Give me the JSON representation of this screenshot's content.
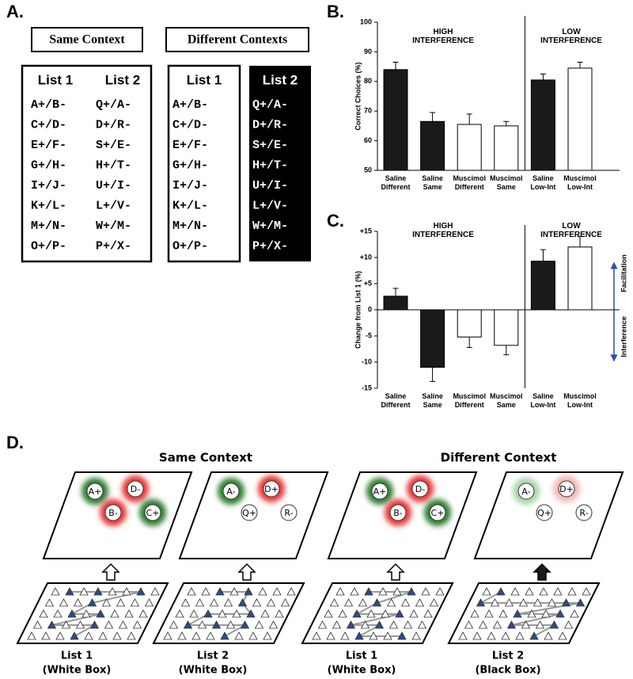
{
  "panel_a": {
    "label": "A.",
    "headers": [
      "Same Context",
      "Different Contexts"
    ],
    "lists": [
      {
        "title": "List 1",
        "items": [
          "A+/B-",
          "C+/D-",
          "E+/F-",
          "G+/H-",
          "I+/J-",
          "K+/L-",
          "M+/N-",
          "O+/P-"
        ]
      },
      {
        "title": "List 2",
        "items": [
          "Q+/A-",
          "D+/R-",
          "S+/E-",
          "H+/T-",
          "U+/I-",
          "L+/V-",
          "W+/M-",
          "P+/X-"
        ]
      },
      {
        "title": "List 1",
        "items": [
          "A+/B-",
          "C+/D-",
          "E+/F-",
          "G+/H-",
          "I+/J-",
          "K+/L-",
          "M+/N-",
          "O+/P-"
        ]
      },
      {
        "title": "List 2",
        "items": [
          "Q+/A-",
          "D+/R-",
          "S+/E-",
          "H+/T-",
          "U+/I-",
          "L+/V-",
          "W+/M-",
          "P+/X-"
        ]
      }
    ]
  },
  "chart_data": [
    {
      "type": "bar",
      "panel_label": "B.",
      "y_label": "Correct Choices (%)",
      "annotations": [
        "HIGH INTERFERENCE",
        "LOW INTERFERENCE"
      ],
      "categories": [
        "Saline Different",
        "Saline Same",
        "Muscimol Different",
        "Muscimol Same",
        "Saline Low-Int",
        "Muscimol Low-Int"
      ],
      "values": [
        84,
        66.5,
        65.5,
        65,
        80.5,
        84.5
      ],
      "errors": [
        2.5,
        3,
        3.5,
        1.5,
        2,
        2
      ],
      "colors": [
        "#1a1a1a",
        "#1a1a1a",
        "#ffffff",
        "#ffffff",
        "#1a1a1a",
        "#ffffff"
      ],
      "ylim": [
        50,
        100
      ],
      "yticks": [
        50,
        60,
        70,
        80,
        90,
        100
      ]
    },
    {
      "type": "bar",
      "panel_label": "C.",
      "y_label": "Change from List 1 (%)",
      "annotations": [
        "HIGH INTERFERENCE",
        "LOW INTERFERENCE"
      ],
      "side_labels": [
        "Facilitation",
        "Interference"
      ],
      "categories": [
        "Saline Different",
        "Saline Same",
        "Muscimol Different",
        "Muscimol Same",
        "Saline Low-Int",
        "Muscimol Low-Int"
      ],
      "values": [
        2.6,
        -11,
        -5.2,
        -6.8,
        9.3,
        12
      ],
      "errors": [
        1.5,
        2.7,
        2,
        1.8,
        2.2,
        2
      ],
      "colors": [
        "#1a1a1a",
        "#1a1a1a",
        "#ffffff",
        "#ffffff",
        "#1a1a1a",
        "#ffffff"
      ],
      "ylim": [
        -15,
        15
      ],
      "yticks": [
        -15,
        -10,
        -5,
        0,
        {
          "value": 5,
          "label": "+5"
        },
        {
          "value": 10,
          "label": "+10"
        },
        {
          "value": 15,
          "label": "+15"
        }
      ]
    }
  ],
  "panel_d": {
    "label": "D.",
    "headings": [
      "Same Context",
      "Different Context"
    ],
    "panels": [
      {
        "circles": [
          {
            "label": "A+",
            "glow": "#2e7d32"
          },
          {
            "label": "D-",
            "glow": "#e53935"
          },
          {
            "label": "B-",
            "glow": "#e53935"
          },
          {
            "label": "C+",
            "glow": "#2e7d32"
          }
        ],
        "arrow": "#ffffff",
        "caption": [
          "List 1",
          "(White Box)"
        ]
      },
      {
        "circles": [
          {
            "label": "A-",
            "glow": "#2e7d32"
          },
          {
            "label": "D+",
            "glow": "#e53935"
          },
          {
            "label": "Q+",
            "glow": "none"
          },
          {
            "label": "R-",
            "glow": "none"
          }
        ],
        "arrow": "#ffffff",
        "caption": [
          "List 2",
          "(White Box)"
        ]
      },
      {
        "circles": [
          {
            "label": "A+",
            "glow": "#2e7d32"
          },
          {
            "label": "D-",
            "glow": "#e53935"
          },
          {
            "label": "B-",
            "glow": "#e53935"
          },
          {
            "label": "C+",
            "glow": "#2e7d32"
          }
        ],
        "arrow": "#ffffff",
        "caption": [
          "List 1",
          "(White Box)"
        ]
      },
      {
        "circles": [
          {
            "label": "A-",
            "glow": "#a5d6a7"
          },
          {
            "label": "D+",
            "glow": "#f5b7b1"
          },
          {
            "label": "Q+",
            "glow": "none"
          },
          {
            "label": "R-",
            "glow": "none"
          }
        ],
        "arrow": "#1a1a1a",
        "caption": [
          "List 2",
          "(Black Box)"
        ]
      }
    ]
  }
}
